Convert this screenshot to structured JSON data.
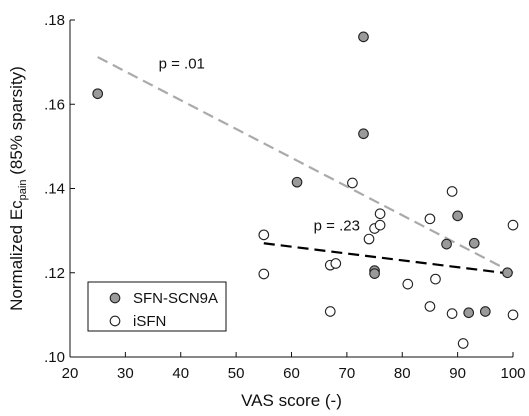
{
  "chart_data": {
    "type": "scatter",
    "xlabel": "VAS score (-)",
    "ylabel_parts": {
      "before_sub": "Normalized Ec",
      "sub": "pain",
      "after_sub": " (85% sparsity)"
    },
    "xlim": [
      20,
      100
    ],
    "ylim": [
      0.1,
      0.18
    ],
    "xticks": [
      20,
      30,
      40,
      50,
      60,
      70,
      80,
      90,
      100
    ],
    "xtick_labels": [
      "20",
      "30",
      "40",
      "50",
      "60",
      "70",
      "80",
      "90",
      "100"
    ],
    "yticks": [
      0.1,
      0.12,
      0.14,
      0.16,
      0.18
    ],
    "ytick_labels": [
      ".10",
      ".12",
      ".14",
      ".16",
      ".18"
    ],
    "grid": false,
    "legend_position": "bottom-left",
    "series": [
      {
        "name": "SFN-SCN9A",
        "marker": "filled-circle",
        "fill": "#9a9a9a",
        "stroke": "#222222",
        "points": [
          {
            "x": 25,
            "y": 0.1625
          },
          {
            "x": 61,
            "y": 0.1415
          },
          {
            "x": 73,
            "y": 0.176
          },
          {
            "x": 73,
            "y": 0.153
          },
          {
            "x": 75,
            "y": 0.1205
          },
          {
            "x": 75,
            "y": 0.1198
          },
          {
            "x": 88,
            "y": 0.1268
          },
          {
            "x": 90,
            "y": 0.1335
          },
          {
            "x": 92,
            "y": 0.1105
          },
          {
            "x": 93,
            "y": 0.127
          },
          {
            "x": 95,
            "y": 0.1108
          },
          {
            "x": 99,
            "y": 0.12
          }
        ]
      },
      {
        "name": "iSFN",
        "marker": "open-circle",
        "fill": "#ffffff",
        "stroke": "#222222",
        "points": [
          {
            "x": 55,
            "y": 0.129
          },
          {
            "x": 55,
            "y": 0.1197
          },
          {
            "x": 67,
            "y": 0.1108
          },
          {
            "x": 67,
            "y": 0.1218
          },
          {
            "x": 68,
            "y": 0.1222
          },
          {
            "x": 71,
            "y": 0.1413
          },
          {
            "x": 74,
            "y": 0.128
          },
          {
            "x": 75,
            "y": 0.1305
          },
          {
            "x": 76,
            "y": 0.134
          },
          {
            "x": 76,
            "y": 0.1313
          },
          {
            "x": 81,
            "y": 0.1173
          },
          {
            "x": 85,
            "y": 0.112
          },
          {
            "x": 85,
            "y": 0.1328
          },
          {
            "x": 86,
            "y": 0.1185
          },
          {
            "x": 89,
            "y": 0.1393
          },
          {
            "x": 89,
            "y": 0.1103
          },
          {
            "x": 91,
            "y": 0.1032
          },
          {
            "x": 100,
            "y": 0.1313
          },
          {
            "x": 100,
            "y": 0.11
          }
        ]
      }
    ],
    "trendlines": [
      {
        "series": "SFN-SCN9A",
        "color": "#aaaaaa",
        "style": "dashed",
        "x": [
          25,
          100
        ],
        "y": [
          0.1712,
          0.12
        ],
        "label": "p = .01",
        "label_at": {
          "x": 36,
          "y": 0.1685
        }
      },
      {
        "series": "iSFN",
        "color": "#000000",
        "style": "dashed",
        "x": [
          55,
          100
        ],
        "y": [
          0.127,
          0.1197
        ],
        "label": "p = .23",
        "label_at": {
          "x": 64,
          "y": 0.13
        }
      }
    ]
  }
}
